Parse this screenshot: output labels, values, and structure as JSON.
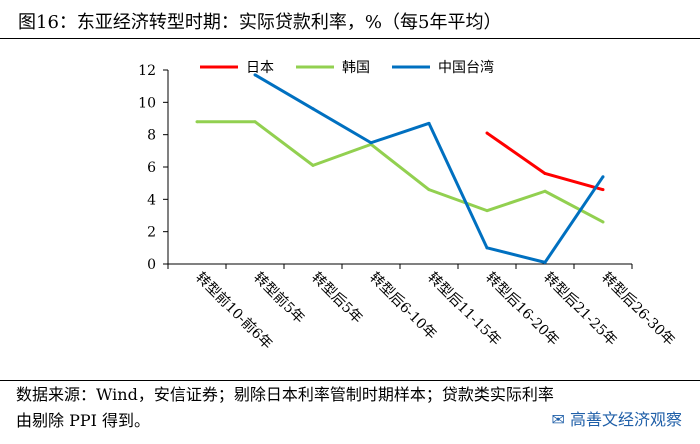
{
  "header": {
    "title": "图16：东亚经济转型时期：实际贷款利率，%（每5年平均）"
  },
  "footer": {
    "source_line1": "数据来源：Wind，安信证券；剔除日本利率管制时期样本；贷款类实际利率",
    "source_line2": "由剔除 PPI 得到。",
    "watermark": "高善文经济观察"
  },
  "chart_data": {
    "type": "line",
    "categories": [
      "转型前10-前6年",
      "转型前5年",
      "转型后5年",
      "转型后6-10年",
      "转型后11-15年",
      "转型后16-20年",
      "转型后21-25年",
      "转型后26-30年"
    ],
    "ylim": [
      0,
      12
    ],
    "yticks": [
      0,
      2,
      4,
      6,
      8,
      10,
      12
    ],
    "legend_position": "top",
    "series": [
      {
        "name": "日本",
        "color": "#ff0000",
        "values": [
          null,
          null,
          null,
          null,
          null,
          8.1,
          5.6,
          4.6
        ]
      },
      {
        "name": "韩国",
        "color": "#92d050",
        "values": [
          8.8,
          8.8,
          6.1,
          7.4,
          4.6,
          3.3,
          4.5,
          2.6
        ]
      },
      {
        "name": "中国台湾",
        "color": "#0070c0",
        "values": [
          null,
          11.7,
          9.6,
          7.5,
          8.7,
          1.0,
          0.1,
          5.4
        ]
      }
    ]
  }
}
